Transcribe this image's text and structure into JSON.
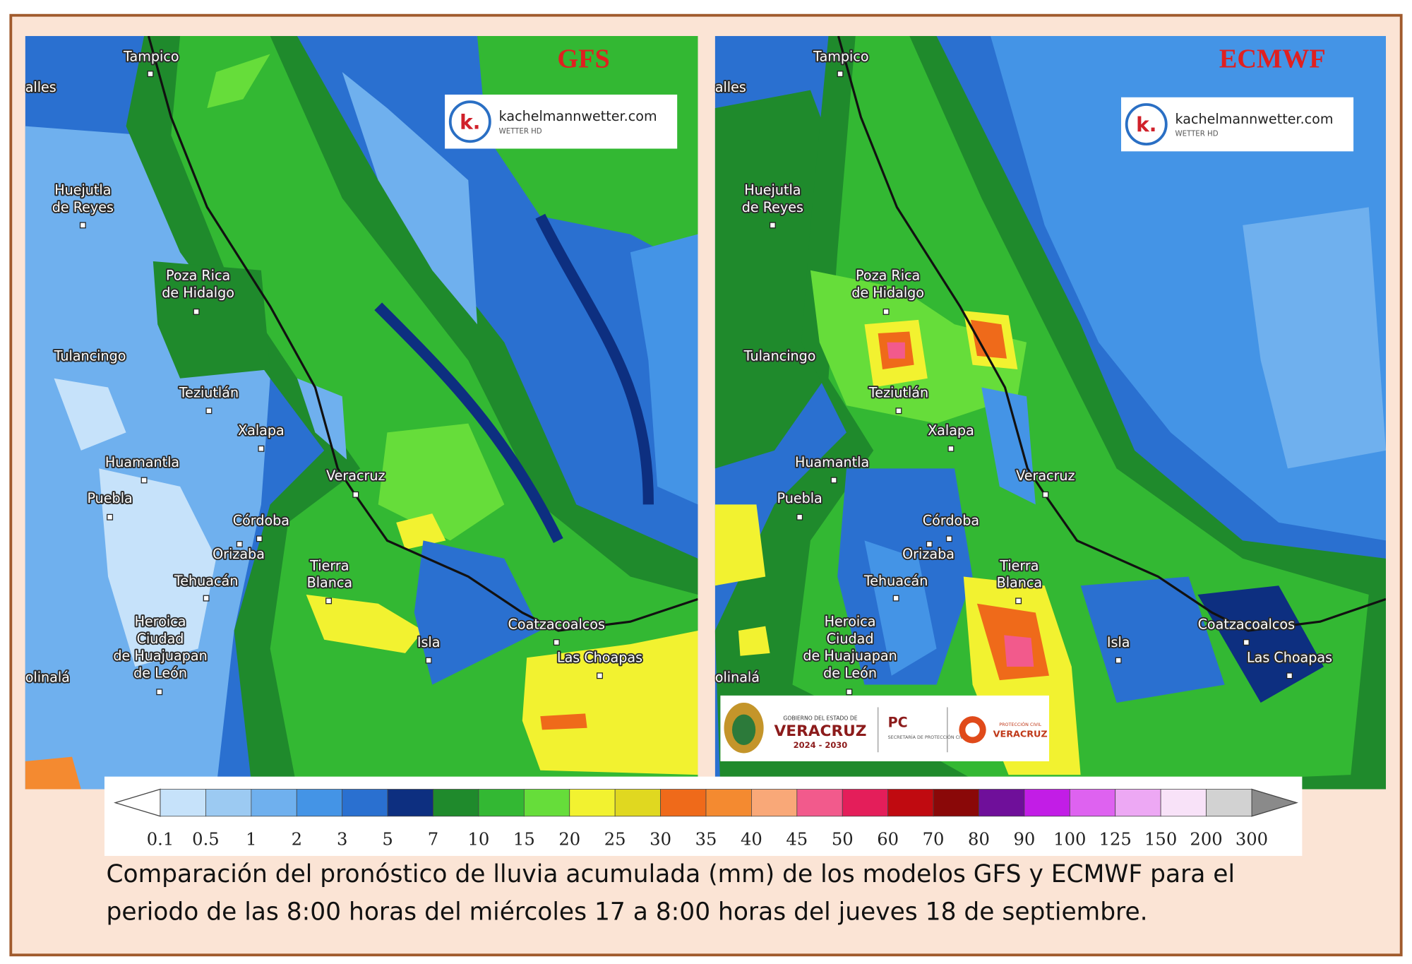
{
  "panels": [
    {
      "model": "GFS"
    },
    {
      "model": "ECMWF"
    }
  ],
  "logo": {
    "mark": "k.",
    "site": "kachelmannwetter.com",
    "tag": "WETTER HD"
  },
  "places": [
    {
      "lines": [
        "alles"
      ]
    },
    {
      "lines": [
        "Tampico"
      ]
    },
    {
      "lines": [
        "Huejutla",
        "de Reyes"
      ]
    },
    {
      "lines": [
        "Poza Rica",
        "de Hidalgo"
      ]
    },
    {
      "lines": [
        "Tulancingo"
      ]
    },
    {
      "lines": [
        "Teziutlán"
      ]
    },
    {
      "lines": [
        "Xalapa"
      ]
    },
    {
      "lines": [
        "Huamantla"
      ]
    },
    {
      "lines": [
        "Puebla"
      ]
    },
    {
      "lines": [
        "Veracruz"
      ]
    },
    {
      "lines": [
        "Córdoba"
      ]
    },
    {
      "lines": [
        "Orizaba"
      ]
    },
    {
      "lines": [
        "Tehuacán"
      ]
    },
    {
      "lines": [
        "Tierra",
        "Blanca"
      ]
    },
    {
      "lines": [
        "Heroica",
        "Ciudad",
        "de Huajuapan",
        "de León"
      ]
    },
    {
      "lines": [
        "Isla"
      ]
    },
    {
      "lines": [
        "Coatzacoalcos"
      ]
    },
    {
      "lines": [
        "Las Choapas"
      ]
    },
    {
      "lines": [
        "olinalá"
      ]
    }
  ],
  "government_logo": {
    "line1": "GOBIERNO DEL ESTADO DE",
    "state": "VERACRUZ",
    "years": "2024 - 2030",
    "pc": "PC",
    "pc_sub": "SECRETARÍA DE PROTECCIÓN CIVIL",
    "pc2": "PROTECCIÓN CIVIL",
    "pc2_state": "VERACRUZ"
  },
  "colorbar": {
    "ticks": [
      0.1,
      0.5,
      1,
      2,
      3,
      5,
      7,
      10,
      15,
      20,
      25,
      30,
      35,
      40,
      45,
      50,
      60,
      70,
      80,
      90,
      100,
      125,
      150,
      200,
      300
    ],
    "colors": [
      "#c6e2fa",
      "#9ccaf2",
      "#6fb0ee",
      "#4494e6",
      "#2a70d0",
      "#0d2f80",
      "#1f8a2c",
      "#33b833",
      "#66dd3a",
      "#f2f230",
      "#e0d820",
      "#ef6a1a",
      "#f48a30",
      "#f9a878",
      "#f25a8c",
      "#e41e5a",
      "#c00a10",
      "#8a0808",
      "#6f0f9a",
      "#c21de6",
      "#de62f0",
      "#eda8f4",
      "#f8e2f8",
      "#d2d2d2"
    ]
  },
  "caption": [
    "Comparación del pronóstico de lluvia acumulada (mm) de los modelos GFS y ECMWF para el",
    "periodo de las 8:00 horas del miércoles 17 a 8:00 horas del jueves 18 de septiembre."
  ]
}
